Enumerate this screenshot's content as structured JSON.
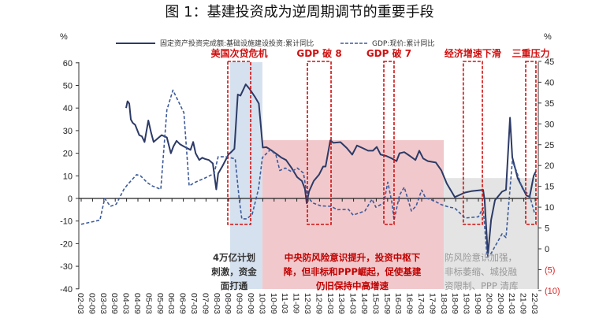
{
  "chart_data": {
    "type": "line",
    "title": "图 1：基建投资成为逆周期调节的重要手段",
    "left_axis": {
      "unit_label": "%",
      "ylim": [
        -40,
        60
      ],
      "ticks": [
        "60",
        "50",
        "40",
        "30",
        "20",
        "10",
        "0",
        "-10",
        "-20",
        "-30",
        "-40"
      ]
    },
    "right_axis": {
      "unit_label": "%",
      "ylim": [
        -10,
        45
      ],
      "ticks": [
        "45",
        "40",
        "35",
        "30",
        "25",
        "20",
        "15",
        "10",
        "5",
        "0",
        "(5)",
        "(10)"
      ]
    },
    "x_tick_labels": [
      "02-03",
      "02-09",
      "03-03",
      "03-09",
      "04-03",
      "04-09",
      "05-03",
      "05-09",
      "06-03",
      "06-09",
      "07-03",
      "07-09",
      "08-03",
      "08-09",
      "09-03",
      "09-09",
      "10-03",
      "10-09",
      "11-03",
      "11-09",
      "12-03",
      "12-09",
      "13-03",
      "13-09",
      "14-03",
      "14-09",
      "15-03",
      "15-09",
      "16-03",
      "16-09",
      "17-03",
      "17-09",
      "18-03",
      "18-09",
      "19-03",
      "19-09",
      "20-03",
      "20-09",
      "21-03",
      "21-09",
      "22-03"
    ],
    "x_unit": "months since 2002-03",
    "legend_position": "top",
    "series": [
      {
        "name": "固定资产投资完成额:基础设施建设投资:累计同比",
        "axis": "left",
        "style": "solid",
        "color": "#2c3a66",
        "points": [
          [
            23.75,
            40
          ],
          [
            24.5,
            43
          ],
          [
            25.4,
            42
          ],
          [
            26.25,
            35
          ],
          [
            27.2,
            33.5
          ],
          [
            28.6,
            32.5
          ],
          [
            30.7,
            28
          ],
          [
            32.1,
            27.5
          ],
          [
            33.5,
            25
          ],
          [
            35.5,
            34.5
          ],
          [
            37,
            29
          ],
          [
            38.3,
            25
          ],
          [
            40.4,
            26.5
          ],
          [
            42.5,
            28
          ],
          [
            45.3,
            27
          ],
          [
            47.4,
            20
          ],
          [
            48.75,
            23
          ],
          [
            50.4,
            25.5
          ],
          [
            52.2,
            24
          ],
          [
            54.3,
            23
          ],
          [
            57.8,
            21.5
          ],
          [
            59.2,
            25
          ],
          [
            60.5,
            20
          ],
          [
            62.4,
            17
          ],
          [
            64,
            18
          ],
          [
            65.4,
            17.5
          ],
          [
            67.5,
            17
          ],
          [
            69.6,
            15.5
          ],
          [
            71.4,
            4
          ],
          [
            72.4,
            11
          ],
          [
            74.5,
            14
          ],
          [
            77.9,
            19.5
          ],
          [
            79.3,
            20.5
          ],
          [
            81,
            22
          ],
          [
            82.8,
            46
          ],
          [
            84.2,
            45.5
          ],
          [
            87,
            50.5
          ],
          [
            89,
            48.5
          ],
          [
            91.8,
            45
          ],
          [
            93.9,
            42
          ],
          [
            96,
            22.5
          ],
          [
            97.9,
            22.7
          ],
          [
            100,
            21.6
          ],
          [
            102.9,
            19.9
          ],
          [
            105.8,
            18.1
          ],
          [
            108.3,
            17
          ],
          [
            111.25,
            13.5
          ],
          [
            114.2,
            9.4
          ],
          [
            116.7,
            7.7
          ],
          [
            118.3,
            4.2
          ],
          [
            119.2,
            -2.1
          ],
          [
            120.4,
            3
          ],
          [
            122.9,
            7.7
          ],
          [
            125.8,
            10.6
          ],
          [
            127.9,
            14.1
          ],
          [
            129.2,
            14.1
          ],
          [
            131.7,
            25.7
          ],
          [
            133.3,
            24.6
          ],
          [
            137.1,
            24.9
          ],
          [
            140.4,
            22.3
          ],
          [
            143.3,
            19.4
          ],
          [
            145.8,
            23.4
          ],
          [
            148.75,
            22.3
          ],
          [
            151.7,
            21.1
          ],
          [
            154.2,
            21.1
          ],
          [
            156.25,
            22.8
          ],
          [
            158.3,
            19.4
          ],
          [
            161.25,
            18.8
          ],
          [
            164.2,
            17.7
          ],
          [
            166.7,
            16.5
          ],
          [
            168.3,
            20
          ],
          [
            170.8,
            20.5
          ],
          [
            173.75,
            18.8
          ],
          [
            176.7,
            17
          ],
          [
            178.75,
            21.1
          ],
          [
            180.8,
            17.7
          ],
          [
            183.3,
            16.5
          ],
          [
            187.5,
            15.9
          ],
          [
            190.4,
            12.4
          ],
          [
            193.3,
            6.6
          ],
          [
            197.5,
            0.6
          ],
          [
            202.9,
            2.6
          ],
          [
            206.25,
            3.2
          ],
          [
            212.5,
            3.8
          ],
          [
            213.3,
            -0.9
          ],
          [
            215,
            -25.2
          ],
          [
            216.7,
            -9.5
          ],
          [
            218.75,
            -0.8
          ],
          [
            222.5,
            3
          ],
          [
            224.6,
            3.8
          ],
          [
            226.7,
            35.7
          ],
          [
            227.9,
            18.2
          ],
          [
            230.8,
            8.9
          ],
          [
            235.4,
            1.3
          ],
          [
            237.1,
            0.7
          ],
          [
            239.2,
            10
          ],
          [
            240.4,
            12
          ]
        ]
      },
      {
        "name": "GDP:现价:累计同比",
        "axis": "right",
        "style": "dashed",
        "color": "#3d5a9a",
        "points": [
          [
            0,
            5.9
          ],
          [
            9.9,
            6.9
          ],
          [
            12.4,
            12.1
          ],
          [
            15.4,
            10.2
          ],
          [
            18.5,
            10.7
          ],
          [
            22.6,
            14.3
          ],
          [
            24.5,
            15.4
          ],
          [
            29.3,
            17.8
          ],
          [
            31.4,
            17.5
          ],
          [
            34.9,
            15.9
          ],
          [
            37.6,
            15.1
          ],
          [
            42.1,
            14.3
          ],
          [
            45.3,
            33.3
          ],
          [
            48.5,
            38.1
          ],
          [
            54.3,
            32.7
          ],
          [
            57.1,
            15.1
          ],
          [
            59.9,
            15.9
          ],
          [
            65.4,
            17
          ],
          [
            70.3,
            18.1
          ],
          [
            72.4,
            22.1
          ],
          [
            76.5,
            22.1
          ],
          [
            81.4,
            21.6
          ],
          [
            83.5,
            12.1
          ],
          [
            84.9,
            7.2
          ],
          [
            87.6,
            7.2
          ],
          [
            90.4,
            8.3
          ],
          [
            93.75,
            14.4
          ],
          [
            95.8,
            21.9
          ],
          [
            100,
            23.8
          ],
          [
            102.9,
            22.6
          ],
          [
            105,
            18.8
          ],
          [
            107.9,
            19.4
          ],
          [
            111.25,
            18.5
          ],
          [
            114.2,
            19.4
          ],
          [
            117.5,
            18.2
          ],
          [
            119.6,
            12.5
          ],
          [
            122.5,
            11
          ],
          [
            126.7,
            10.3
          ],
          [
            132.1,
            10.2
          ],
          [
            135.4,
            9.4
          ],
          [
            141.25,
            9.5
          ],
          [
            143.75,
            8.1
          ],
          [
            150,
            9.1
          ],
          [
            153.75,
            11.9
          ],
          [
            155.8,
            10
          ],
          [
            160,
            11
          ],
          [
            162.1,
            16
          ],
          [
            164.2,
            11.3
          ],
          [
            165.4,
            6.9
          ],
          [
            168.3,
            12.9
          ],
          [
            170.8,
            14.8
          ],
          [
            174.6,
            9.1
          ],
          [
            177.1,
            10.3
          ],
          [
            180,
            14.1
          ],
          [
            182.1,
            12.2
          ],
          [
            186.25,
            11.6
          ],
          [
            190.4,
            10.6
          ],
          [
            194.6,
            10
          ],
          [
            197.5,
            9.8
          ],
          [
            202.9,
            7.4
          ],
          [
            210,
            7.7
          ],
          [
            212.5,
            9.9
          ],
          [
            214.6,
            -2
          ],
          [
            216.7,
            -1.1
          ],
          [
            222.5,
            3.6
          ],
          [
            224.6,
            2.7
          ],
          [
            227.9,
            21
          ],
          [
            230,
            18.8
          ],
          [
            233.3,
            14.4
          ],
          [
            237.1,
            12.8
          ],
          [
            239.6,
            8.7
          ]
        ]
      }
    ],
    "shaded_periods": [
      {
        "name": "stimulus",
        "start": 78.75,
        "end": 95.8,
        "top_left_value": 60,
        "color": "#d6e1ef"
      },
      {
        "name": "shadow-financing",
        "start": 95.8,
        "end": 191.7,
        "top_left_value": 25.8,
        "color": "#f1c9cc"
      },
      {
        "name": "deleveraging",
        "start": 191.7,
        "end": 241.5,
        "top_left_value": 9,
        "color": "#e4e4e4"
      }
    ],
    "event_boxes": [
      {
        "label": "美国次贷危机",
        "start": 77.5,
        "end": 89.6
      },
      {
        "label": "GDP 破 8",
        "start": 119.6,
        "end": 132.1
      },
      {
        "label": "GDP 破 7",
        "start": 160,
        "end": 165.4
      },
      {
        "label": "经济增速下滑",
        "start": 202,
        "end": 212.1
      },
      {
        "label": "三重压力",
        "start": 235,
        "end": 240.4
      }
    ],
    "annotations": {
      "stimulus": [
        "4万亿计划",
        "刺激，资金",
        "面打通"
      ],
      "shadow_financing": [
        "中央防风险意识提升，投资中枢下",
        "降，但非标和PPP崛起，促使基建",
        "仍旧保持中高增速"
      ],
      "deleveraging": [
        "防风险意识加强，",
        "非标萎缩、城投融",
        "资限制、PPP 清库"
      ]
    }
  }
}
